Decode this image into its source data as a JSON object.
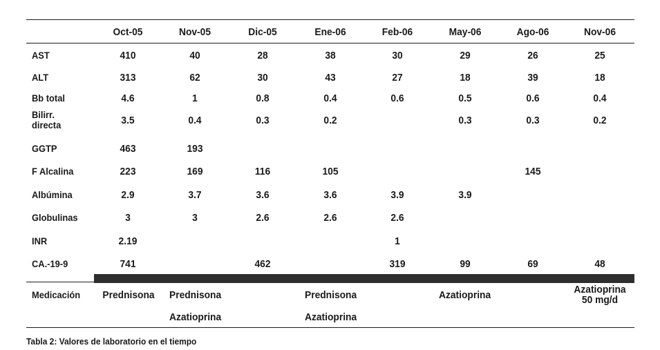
{
  "table": {
    "columns": [
      "Oct-05",
      "Nov-05",
      "Dic-05",
      "Ene-06",
      "Feb-06",
      "May-06",
      "Ago-06",
      "Nov-06"
    ],
    "rows": [
      {
        "label": "AST",
        "values": [
          "410",
          "40",
          "28",
          "38",
          "30",
          "29",
          "26",
          "25"
        ]
      },
      {
        "label": "ALT",
        "values": [
          "313",
          "62",
          "30",
          "43",
          "27",
          "18",
          "39",
          "18"
        ]
      },
      {
        "label": "Bb total",
        "values": [
          "4.6",
          "1",
          "0.8",
          "0.4",
          "0.6",
          "0.5",
          "0.6",
          "0.4"
        ]
      },
      {
        "label_line1": "Bilirr.",
        "label_line2": "directa",
        "values": [
          "3.5",
          "0.4",
          "0.3",
          "0.2",
          "",
          "0.3",
          "0.3",
          "0.2"
        ]
      },
      {
        "label": "GGTP",
        "values": [
          "463",
          "193",
          "",
          "",
          "",
          "",
          "",
          ""
        ]
      },
      {
        "label": "F Alcalina",
        "values": [
          "223",
          "169",
          "116",
          "105",
          "",
          "",
          "145",
          ""
        ]
      },
      {
        "label": "Albúmina",
        "values": [
          "2.9",
          "3.7",
          "3.6",
          "3.6",
          "3.9",
          "3.9",
          "",
          ""
        ]
      },
      {
        "label": "Globulinas",
        "values": [
          "3",
          "3",
          "2.6",
          "2.6",
          "2.6",
          "",
          "",
          ""
        ]
      },
      {
        "label": "INR",
        "values": [
          "2.19",
          "",
          "",
          "",
          "1",
          "",
          "",
          ""
        ]
      },
      {
        "label": "CA.-19-9",
        "values": [
          "741",
          "",
          "462",
          "",
          "319",
          "99",
          "69",
          "48"
        ]
      }
    ],
    "medication": {
      "label": "Medicación",
      "oct05": "Prednisona",
      "nov05_line1": "Prednisona",
      "nov05_line2": "Azatioprina",
      "ene06_line1": "Prednisona",
      "ene06_line2": "Azatioprina",
      "may06": "Azatioprina",
      "nov06_line1": "Azatioprina",
      "nov06_line2": "50 mg/d"
    }
  },
  "caption": "Tabla 2: Valores de laboratorio en el tiempo"
}
